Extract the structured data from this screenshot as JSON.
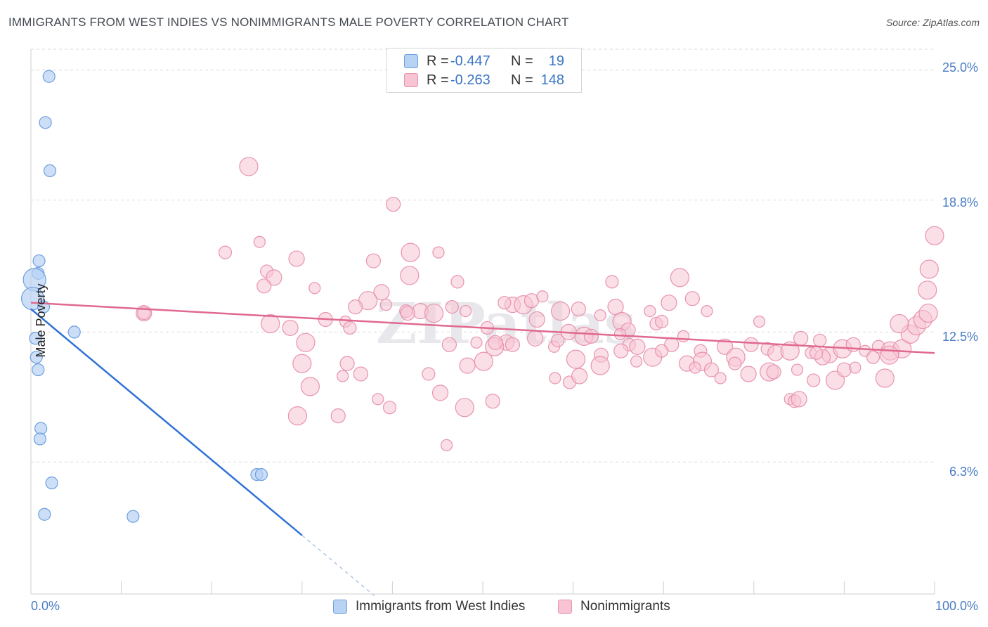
{
  "title": "IMMIGRANTS FROM WEST INDIES VS NONIMMIGRANTS MALE POVERTY CORRELATION CHART",
  "source": "Source: ZipAtlas.com",
  "watermark": "ZIPatlas",
  "colors": {
    "blue_fill": "#b7d2f3",
    "blue_stroke": "#6d9fdf",
    "blue_line": "#2f72d6",
    "pink_fill": "#f8c4d3",
    "pink_stroke": "#e893b0",
    "pink_line": "#e0698f",
    "tick_text": "#4a7cc4"
  },
  "legend": {
    "rows": [
      {
        "r_label": "R =",
        "r_value": "-0.447",
        "n_label": "N =",
        "n_value": "19"
      },
      {
        "r_label": "R =",
        "r_value": "-0.263",
        "n_label": "N =",
        "n_value": "148"
      }
    ],
    "bottom": [
      "Immigrants from West Indies",
      "Nonimmigrants"
    ]
  },
  "chart_data": {
    "type": "scatter",
    "title": "IMMIGRANTS FROM WEST INDIES VS NONIMMIGRANTS MALE POVERTY CORRELATION CHART",
    "xlabel": "",
    "ylabel": "Male Poverty",
    "xlim": [
      0,
      100
    ],
    "ylim": [
      0,
      26
    ],
    "x_tick_labels": [
      "0.0%",
      "100.0%"
    ],
    "y_ticks": [
      {
        "value": 25.0,
        "label": "25.0%"
      },
      {
        "value": 18.8,
        "label": "18.8%"
      },
      {
        "value": 12.5,
        "label": "12.5%"
      },
      {
        "value": 6.3,
        "label": "6.3%"
      }
    ],
    "grid": "horizontal dashed",
    "legend_position": "top-center",
    "series": [
      {
        "name": "Immigrants from West Indies",
        "r": -0.447,
        "n": 19,
        "trend": {
          "x0": 0,
          "y0": 13.6,
          "x1": 30,
          "y1": 2.8,
          "dashed_to_x": 38
        },
        "points": [
          [
            2.0,
            24.7
          ],
          [
            1.6,
            22.5
          ],
          [
            2.1,
            20.2
          ],
          [
            0.9,
            15.9
          ],
          [
            0.8,
            15.3
          ],
          [
            0.4,
            15.0
          ],
          [
            0.2,
            14.1
          ],
          [
            1.4,
            13.7
          ],
          [
            4.8,
            12.5
          ],
          [
            0.5,
            12.2
          ],
          [
            0.6,
            11.3
          ],
          [
            0.8,
            10.7
          ],
          [
            1.1,
            7.9
          ],
          [
            1.0,
            7.4
          ],
          [
            2.3,
            5.3
          ],
          [
            25.0,
            5.7
          ],
          [
            25.5,
            5.7
          ],
          [
            1.5,
            3.8
          ],
          [
            11.3,
            3.7
          ]
        ]
      },
      {
        "name": "Nonimmigrants",
        "r": -0.263,
        "n": 148,
        "trend": {
          "x0": 0,
          "y0": 13.9,
          "x1": 100,
          "y1": 11.5
        },
        "points": [
          [
            24.1,
            20.4
          ],
          [
            40.1,
            18.6
          ],
          [
            25.3,
            16.8
          ],
          [
            21.5,
            16.3
          ],
          [
            29.4,
            16.0
          ],
          [
            42.0,
            16.3
          ],
          [
            37.9,
            15.9
          ],
          [
            45.1,
            16.3
          ],
          [
            26.1,
            15.4
          ],
          [
            26.9,
            15.1
          ],
          [
            41.9,
            15.2
          ],
          [
            25.8,
            14.7
          ],
          [
            31.4,
            14.6
          ],
          [
            47.2,
            14.9
          ],
          [
            38.8,
            14.4
          ],
          [
            37.3,
            14.0
          ],
          [
            35.9,
            13.7
          ],
          [
            39.3,
            13.8
          ],
          [
            41.5,
            13.5
          ],
          [
            43.1,
            13.5
          ],
          [
            44.6,
            13.4
          ],
          [
            41.7,
            13.4
          ],
          [
            48.1,
            13.5
          ],
          [
            46.6,
            13.7
          ],
          [
            53.3,
            13.8
          ],
          [
            54.5,
            13.8
          ],
          [
            55.4,
            14.0
          ],
          [
            56.6,
            14.2
          ],
          [
            52.4,
            13.9
          ],
          [
            56.0,
            13.1
          ],
          [
            58.6,
            13.5
          ],
          [
            60.6,
            13.6
          ],
          [
            63.0,
            13.3
          ],
          [
            64.3,
            14.9
          ],
          [
            64.7,
            13.7
          ],
          [
            65.4,
            13.0
          ],
          [
            66.1,
            12.6
          ],
          [
            68.5,
            13.5
          ],
          [
            69.2,
            12.9
          ],
          [
            70.6,
            13.9
          ],
          [
            71.8,
            15.1
          ],
          [
            73.2,
            14.1
          ],
          [
            74.8,
            13.5
          ],
          [
            69.8,
            13.0
          ],
          [
            12.5,
            13.4
          ],
          [
            26.5,
            12.9
          ],
          [
            32.6,
            13.1
          ],
          [
            34.8,
            13.0
          ],
          [
            35.3,
            12.7
          ],
          [
            28.7,
            12.7
          ],
          [
            30.4,
            12.0
          ],
          [
            46.3,
            11.9
          ],
          [
            49.3,
            12.0
          ],
          [
            50.5,
            12.7
          ],
          [
            52.6,
            12.0
          ],
          [
            51.3,
            11.8
          ],
          [
            53.3,
            11.9
          ],
          [
            57.9,
            11.8
          ],
          [
            58.3,
            12.1
          ],
          [
            59.5,
            12.5
          ],
          [
            61.2,
            12.3
          ],
          [
            63.1,
            11.4
          ],
          [
            65.2,
            12.4
          ],
          [
            66.2,
            11.9
          ],
          [
            67.1,
            11.8
          ],
          [
            68.8,
            11.3
          ],
          [
            70.9,
            11.9
          ],
          [
            72.2,
            12.3
          ],
          [
            74.1,
            11.6
          ],
          [
            76.8,
            11.8
          ],
          [
            78.0,
            11.3
          ],
          [
            79.7,
            11.9
          ],
          [
            80.6,
            13.0
          ],
          [
            81.5,
            11.7
          ],
          [
            82.4,
            11.5
          ],
          [
            84.0,
            11.6
          ],
          [
            85.2,
            12.2
          ],
          [
            86.3,
            11.5
          ],
          [
            87.3,
            12.1
          ],
          [
            88.4,
            11.4
          ],
          [
            89.8,
            11.7
          ],
          [
            91.0,
            11.9
          ],
          [
            92.3,
            11.6
          ],
          [
            93.8,
            11.8
          ],
          [
            95.1,
            11.6
          ],
          [
            96.4,
            11.7
          ],
          [
            97.3,
            12.4
          ],
          [
            98.0,
            12.8
          ],
          [
            98.7,
            13.1
          ],
          [
            99.3,
            13.4
          ],
          [
            96.1,
            12.9
          ],
          [
            95.0,
            11.4
          ],
          [
            99.2,
            14.5
          ],
          [
            99.4,
            15.5
          ],
          [
            100.0,
            17.1
          ],
          [
            30.0,
            11.0
          ],
          [
            35.0,
            11.0
          ],
          [
            34.5,
            10.4
          ],
          [
            44.0,
            10.5
          ],
          [
            48.3,
            10.9
          ],
          [
            50.1,
            11.1
          ],
          [
            51.4,
            12.0
          ],
          [
            58.0,
            10.3
          ],
          [
            59.6,
            10.1
          ],
          [
            60.7,
            10.4
          ],
          [
            63.0,
            10.9
          ],
          [
            65.3,
            11.6
          ],
          [
            67.0,
            11.1
          ],
          [
            69.8,
            11.6
          ],
          [
            72.6,
            11.0
          ],
          [
            74.3,
            11.1
          ],
          [
            75.3,
            10.7
          ],
          [
            76.3,
            10.3
          ],
          [
            77.9,
            11.0
          ],
          [
            79.4,
            10.5
          ],
          [
            81.7,
            10.6
          ],
          [
            82.2,
            10.6
          ],
          [
            84.8,
            10.7
          ],
          [
            86.6,
            10.2
          ],
          [
            87.6,
            11.3
          ],
          [
            89.0,
            10.2
          ],
          [
            90.0,
            10.7
          ],
          [
            91.2,
            10.8
          ],
          [
            93.2,
            11.3
          ],
          [
            94.5,
            10.3
          ],
          [
            30.9,
            9.9
          ],
          [
            36.5,
            10.5
          ],
          [
            38.4,
            9.3
          ],
          [
            39.7,
            8.9
          ],
          [
            45.3,
            9.6
          ],
          [
            48.0,
            8.9
          ],
          [
            51.1,
            9.2
          ],
          [
            84.0,
            9.3
          ],
          [
            84.5,
            9.2
          ],
          [
            85.0,
            9.3
          ],
          [
            29.5,
            8.5
          ],
          [
            34.0,
            8.5
          ],
          [
            46.0,
            7.1
          ],
          [
            12.5,
            13.4
          ],
          [
            55.8,
            12.2
          ],
          [
            60.3,
            11.2
          ],
          [
            62.0,
            12.3
          ],
          [
            73.5,
            10.8
          ],
          [
            86.9,
            11.5
          ]
        ]
      }
    ]
  }
}
